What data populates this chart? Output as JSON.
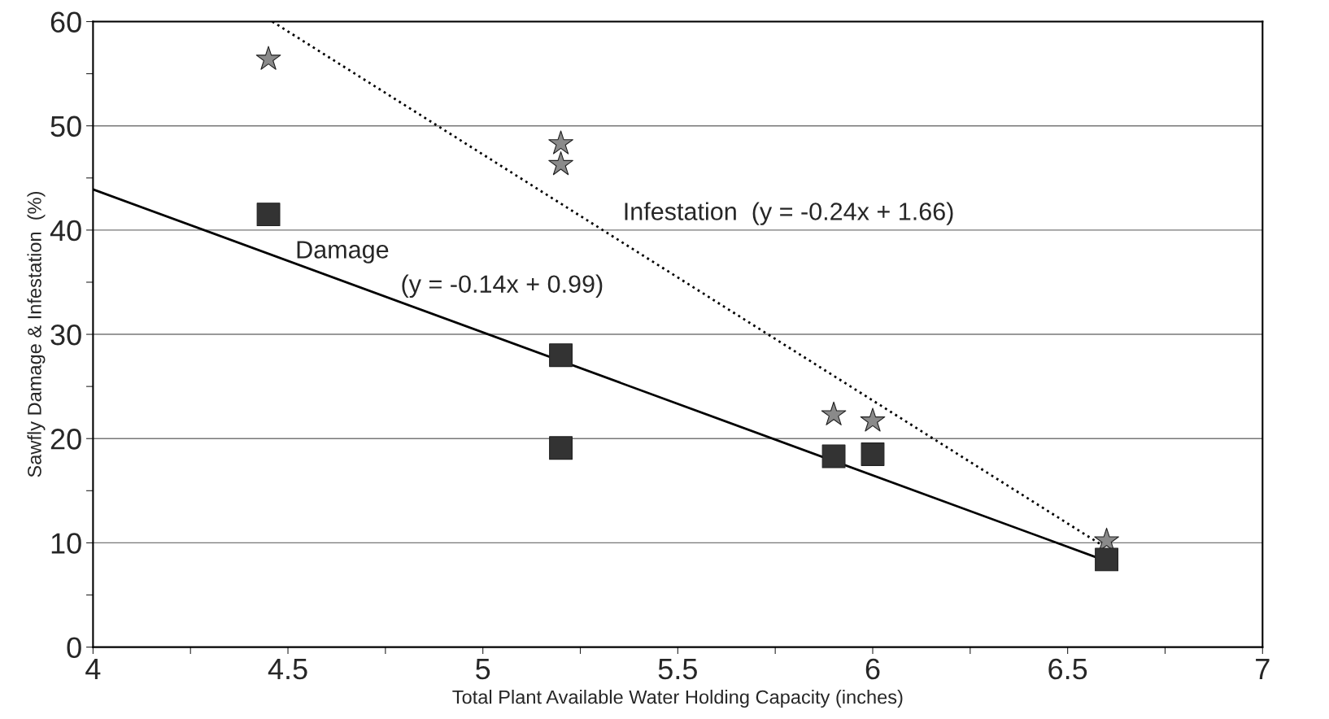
{
  "chart_data": {
    "type": "scatter",
    "xlabel": "Total Plant Available Water Holding Capacity (inches)",
    "ylabel": "Sawfly Damage & Infestation  (%)",
    "xlim": [
      4,
      7
    ],
    "ylim": [
      0,
      60
    ],
    "xticks": [
      4,
      {
        "value": 4.25,
        "label": null
      },
      4.5,
      {
        "value": 4.75,
        "label": null
      },
      5,
      {
        "value": 5.25,
        "label": null
      },
      5.5,
      {
        "value": 5.75,
        "label": null
      },
      6,
      {
        "value": 6.25,
        "label": null
      },
      6.5,
      {
        "value": 6.75,
        "label": null
      },
      7
    ],
    "yticks": [
      0,
      {
        "value": 5,
        "label": null
      },
      10,
      {
        "value": 15,
        "label": null
      },
      20,
      {
        "value": 25,
        "label": null
      },
      30,
      {
        "value": 35,
        "label": null
      },
      40,
      {
        "value": 45,
        "label": null
      },
      50,
      {
        "value": 55,
        "label": null
      },
      60
    ],
    "grid": "y",
    "series": [
      {
        "marker": "star",
        "color": "#8a8a8a",
        "x": [
          4.45,
          5.2,
          5.2,
          5.9,
          6.0,
          6.6
        ],
        "values": [
          56.4,
          48.3,
          46.3,
          22.3,
          21.7,
          10.2
        ]
      },
      {
        "marker": "square",
        "color": "#333333",
        "x": [
          4.45,
          5.2,
          5.2,
          5.9,
          6.0,
          6.6
        ],
        "values": [
          41.5,
          28.0,
          19.1,
          18.3,
          18.5,
          8.4
        ]
      },
      {
        "type": "line",
        "marker": "none",
        "line_style": "solid",
        "color": "#000000",
        "x": [
          4,
          6.6
        ],
        "values": [
          43.9,
          8.25
        ]
      },
      {
        "type": "line",
        "marker": "none",
        "line_style": "dotted",
        "color": "#000000",
        "x": [
          4.46,
          6.6
        ],
        "values": [
          60,
          9.5
        ]
      }
    ],
    "annotations": [
      "Infestation  (y = -0.24x + 1.66)",
      "Damage",
      "(y = -0.14x + 0.99)"
    ]
  }
}
